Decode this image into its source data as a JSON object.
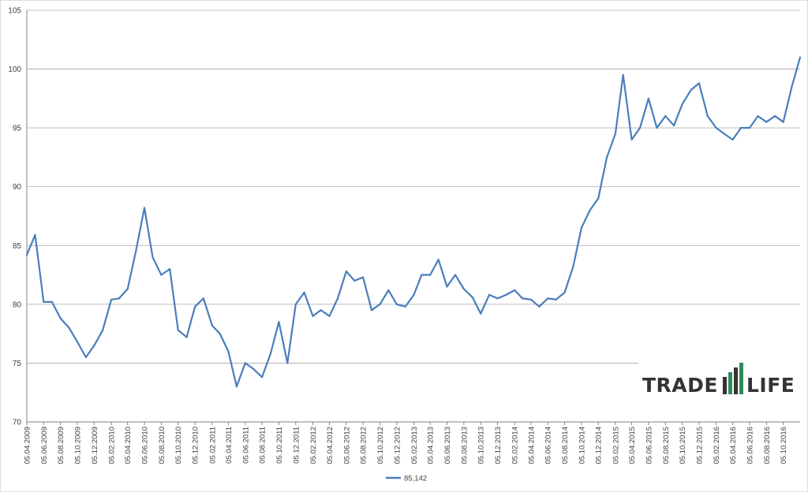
{
  "chart_data": {
    "type": "line",
    "title": "",
    "xlabel": "",
    "ylabel": "",
    "ylim": [
      70,
      105
    ],
    "yticks": [
      70,
      75,
      80,
      85,
      90,
      95,
      100,
      105
    ],
    "grid": "horizontal",
    "legend_position": "bottom-center",
    "x_tick_labels": [
      "05.04.2009",
      "05.06.2009",
      "05.08.2009",
      "05.10.2009",
      "05.12.2009",
      "05.02.2010",
      "05.04.2010",
      "05.06.2010",
      "05.08.2010",
      "05.10.2010",
      "05.12.2010",
      "05.02.2011",
      "05.04.2011",
      "05.06.2011",
      "05.08.2011",
      "05.10.2011",
      "05.12.2011",
      "05.02.2012",
      "05.04.2012",
      "05.06.2012",
      "05.08.2012",
      "05.10.2012",
      "05.12.2012",
      "05.02.2013",
      "05.04.2013",
      "05.06.2013",
      "05.08.2013",
      "05.10.2013",
      "05.12.2013",
      "05.02.2014",
      "05.04.2014",
      "05.06.2014",
      "05.08.2014",
      "05.10.2014",
      "05.12.2014",
      "05.02.2015",
      "05.04.2015",
      "05.06.2015",
      "05.08.2015",
      "05.10.2015",
      "05.12.2015",
      "05.02.2016",
      "05.04.2016",
      "05.06.2016",
      "05.08.2016",
      "05.10.2016"
    ],
    "series": [
      {
        "name": "85,142",
        "color": "#4a7ebb",
        "x": [
          "05.04.2009",
          "05.05.2009",
          "05.06.2009",
          "05.07.2009",
          "05.08.2009",
          "05.09.2009",
          "05.10.2009",
          "05.11.2009",
          "05.12.2009",
          "05.01.2010",
          "05.02.2010",
          "05.03.2010",
          "05.04.2010",
          "05.05.2010",
          "05.06.2010",
          "05.07.2010",
          "05.08.2010",
          "05.09.2010",
          "05.10.2010",
          "05.11.2010",
          "05.12.2010",
          "05.01.2011",
          "05.02.2011",
          "05.03.2011",
          "05.04.2011",
          "05.05.2011",
          "05.06.2011",
          "05.07.2011",
          "05.08.2011",
          "05.09.2011",
          "05.10.2011",
          "05.11.2011",
          "05.12.2011",
          "05.01.2012",
          "05.02.2012",
          "05.03.2012",
          "05.04.2012",
          "05.05.2012",
          "05.06.2012",
          "05.07.2012",
          "05.08.2012",
          "05.09.2012",
          "05.10.2012",
          "05.11.2012",
          "05.12.2012",
          "05.01.2013",
          "05.02.2013",
          "05.03.2013",
          "05.04.2013",
          "05.05.2013",
          "05.06.2013",
          "05.07.2013",
          "05.08.2013",
          "05.09.2013",
          "05.10.2013",
          "05.11.2013",
          "05.12.2013",
          "05.01.2014",
          "05.02.2014",
          "05.03.2014",
          "05.04.2014",
          "05.05.2014",
          "05.06.2014",
          "05.07.2014",
          "05.08.2014",
          "05.09.2014",
          "05.10.2014",
          "05.11.2014",
          "05.12.2014",
          "05.01.2015",
          "05.02.2015",
          "05.03.2015",
          "05.04.2015",
          "05.05.2015",
          "05.06.2015",
          "05.07.2015",
          "05.08.2015",
          "05.09.2015",
          "05.10.2015",
          "05.11.2015",
          "05.12.2015",
          "05.01.2016",
          "05.02.2016",
          "05.03.2016",
          "05.04.2016",
          "05.05.2016",
          "05.06.2016",
          "05.07.2016",
          "05.08.2016",
          "05.09.2016",
          "05.10.2016",
          "05.11.2016",
          "05.12.2016"
        ],
        "values": [
          84.2,
          85.9,
          80.2,
          80.2,
          78.8,
          78.0,
          76.8,
          75.5,
          76.5,
          77.8,
          80.4,
          80.5,
          81.3,
          84.5,
          88.2,
          84.0,
          82.5,
          83.0,
          77.8,
          77.2,
          79.8,
          80.5,
          78.2,
          77.5,
          76.0,
          73.0,
          75.0,
          74.5,
          73.8,
          75.8,
          78.5,
          75.0,
          80.0,
          81.0,
          79.0,
          79.5,
          79.0,
          80.5,
          82.8,
          82.0,
          82.3,
          79.5,
          80.0,
          81.2,
          80.0,
          79.8,
          80.8,
          82.5,
          82.5,
          83.8,
          81.5,
          82.5,
          81.3,
          80.6,
          79.2,
          80.8,
          80.5,
          80.8,
          81.2,
          80.5,
          80.4,
          79.8,
          80.5,
          80.4,
          81.0,
          83.2,
          86.5,
          88.0,
          89.0,
          92.5,
          94.5,
          99.5,
          94.0,
          95.0,
          97.5,
          95.0,
          96.0,
          95.2,
          97.0,
          98.2,
          98.8,
          96.0,
          95.0,
          94.5,
          94.0,
          95.0,
          95.0,
          96.0,
          95.5,
          96.0,
          95.5,
          98.5,
          101.0
        ]
      }
    ]
  },
  "legend": {
    "label": "85,142"
  },
  "watermark": {
    "text_left": "TRADE",
    "text_right": "LIFE",
    "bar_color": "#2e8b57"
  }
}
